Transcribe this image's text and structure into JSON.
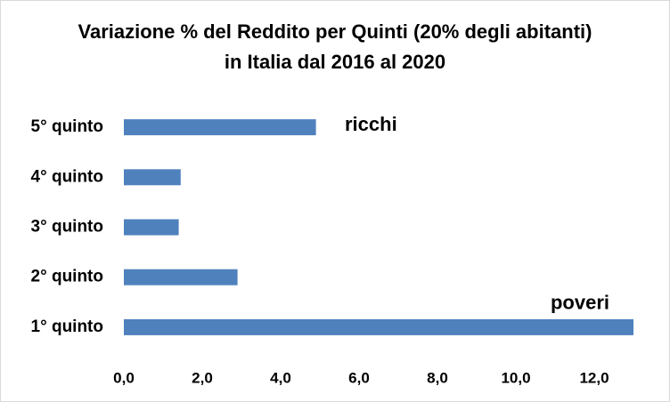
{
  "chart_data": {
    "type": "barh",
    "title": "Variazione % del Reddito per Quinti (20% degli abitanti) in Italia dal 2016 al 2020",
    "categories": [
      "1° quinto",
      "2° quinto",
      "3° quinto",
      "4° quinto",
      "5° quinto"
    ],
    "values": [
      13.0,
      2.9,
      1.4,
      1.45,
      4.9
    ],
    "color": "#4f81bd",
    "xlim": [
      0,
      13
    ],
    "xticks": [
      {
        "value": 0,
        "label": "0,0"
      },
      {
        "value": 2,
        "label": "2,0"
      },
      {
        "value": 4,
        "label": "4,0"
      },
      {
        "value": 6,
        "label": "6,0"
      },
      {
        "value": 8,
        "label": "8,0"
      },
      {
        "value": 10,
        "label": "10,0"
      },
      {
        "value": 12,
        "label": "12,0"
      }
    ],
    "grid": false,
    "annotations": [
      "ricchi",
      "poveri"
    ]
  }
}
